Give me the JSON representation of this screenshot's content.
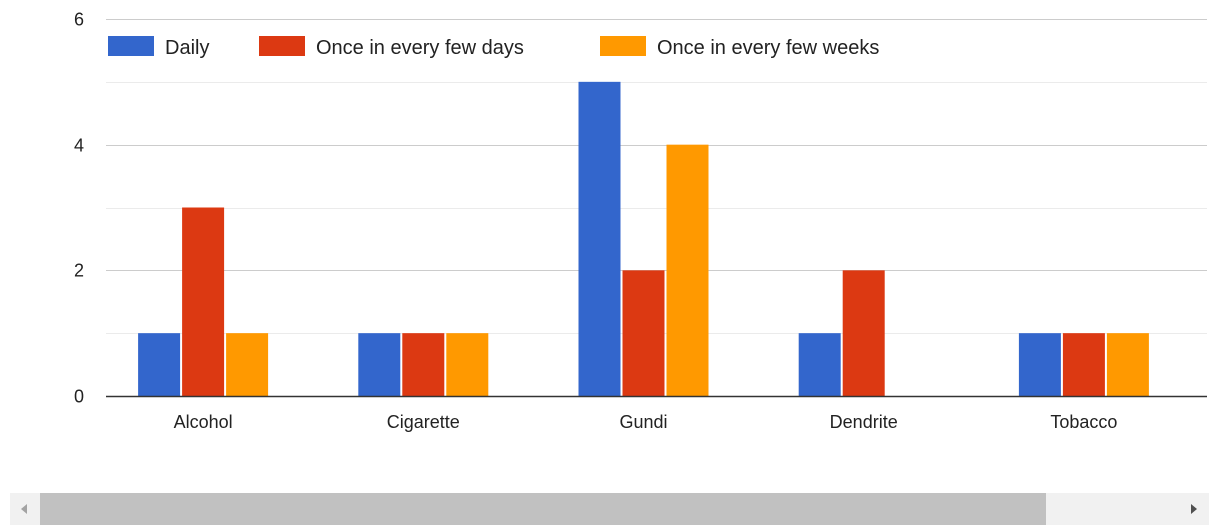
{
  "chart_data": {
    "type": "bar",
    "title": "",
    "xlabel": "",
    "ylabel": "",
    "categories": [
      "Alcohol",
      "Cigarette",
      "Gundi",
      "Dendrite",
      "Tobacco"
    ],
    "series": [
      {
        "name": "Daily",
        "color": "#3366cc",
        "values": [
          1,
          1,
          5,
          1,
          1
        ]
      },
      {
        "name": "Once in every few days",
        "color": "#dc3912",
        "values": [
          3,
          1,
          2,
          2,
          1
        ]
      },
      {
        "name": "Once in every few weeks",
        "color": "#ff9900",
        "values": [
          1,
          1,
          4,
          0,
          1
        ]
      }
    ],
    "ylim": [
      0,
      6
    ],
    "yticks": [
      0,
      2,
      4,
      6
    ],
    "yticks_labels": [
      "0",
      "2",
      "4",
      "6"
    ],
    "minor_gridlines": true,
    "grid": true,
    "legend": "top-left"
  },
  "scrollbar": {
    "left_arrow_icon": "chevron-left-icon",
    "right_arrow_icon": "chevron-right-icon"
  }
}
